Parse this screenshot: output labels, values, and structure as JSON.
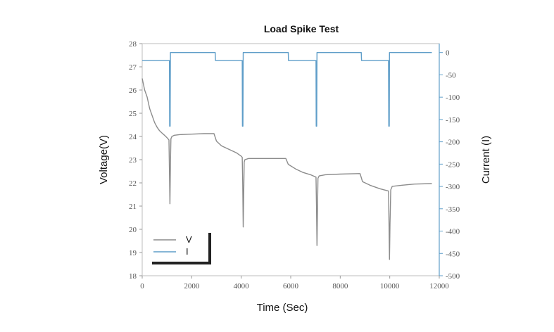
{
  "chart_data": {
    "type": "line",
    "title": "Load Spike Test",
    "xlabel": "Time (Sec)",
    "ylabel_left": "Voltage(V)",
    "ylabel_right": "Current (I)",
    "xlim": [
      0,
      12000
    ],
    "ylim_left": [
      18,
      28
    ],
    "ylim_right": [
      -500,
      20
    ],
    "x_ticks": [
      0,
      2000,
      4000,
      6000,
      8000,
      10000,
      12000
    ],
    "y_ticks_left": [
      18,
      19,
      20,
      21,
      22,
      23,
      24,
      25,
      26,
      27,
      28
    ],
    "y_ticks_right": [
      0,
      -50,
      -100,
      -150,
      -200,
      -250,
      -300,
      -350,
      -400,
      -450,
      -500
    ],
    "grid": false,
    "legend_position": "bottom-left",
    "series": [
      {
        "name": "V",
        "axis": "left",
        "color": "#8c8c8c",
        "points": [
          [
            0,
            26.5
          ],
          [
            100,
            26.0
          ],
          [
            200,
            25.7
          ],
          [
            300,
            25.2
          ],
          [
            400,
            24.9
          ],
          [
            500,
            24.6
          ],
          [
            600,
            24.4
          ],
          [
            700,
            24.25
          ],
          [
            800,
            24.15
          ],
          [
            900,
            24.05
          ],
          [
            1000,
            23.95
          ],
          [
            1080,
            23.85
          ],
          [
            1100,
            22.5
          ],
          [
            1120,
            21.1
          ],
          [
            1140,
            22.8
          ],
          [
            1160,
            23.9
          ],
          [
            1200,
            24.0
          ],
          [
            1300,
            24.05
          ],
          [
            1500,
            24.08
          ],
          [
            2000,
            24.1
          ],
          [
            2500,
            24.12
          ],
          [
            2900,
            24.12
          ],
          [
            3000,
            23.8
          ],
          [
            3200,
            23.6
          ],
          [
            3500,
            23.45
          ],
          [
            3800,
            23.3
          ],
          [
            4000,
            23.15
          ],
          [
            4040,
            23.1
          ],
          [
            4060,
            22.0
          ],
          [
            4080,
            20.1
          ],
          [
            4100,
            21.5
          ],
          [
            4120,
            22.9
          ],
          [
            4150,
            23.0
          ],
          [
            4300,
            23.05
          ],
          [
            4800,
            23.05
          ],
          [
            5400,
            23.05
          ],
          [
            5800,
            23.05
          ],
          [
            5900,
            22.8
          ],
          [
            6200,
            22.6
          ],
          [
            6500,
            22.45
          ],
          [
            6800,
            22.35
          ],
          [
            7020,
            22.25
          ],
          [
            7040,
            21.0
          ],
          [
            7060,
            19.3
          ],
          [
            7080,
            20.8
          ],
          [
            7100,
            22.2
          ],
          [
            7150,
            22.3
          ],
          [
            7400,
            22.35
          ],
          [
            8000,
            22.38
          ],
          [
            8800,
            22.4
          ],
          [
            8900,
            22.05
          ],
          [
            9200,
            21.9
          ],
          [
            9600,
            21.75
          ],
          [
            9950,
            21.65
          ],
          [
            9970,
            20.3
          ],
          [
            9990,
            18.7
          ],
          [
            10010,
            20.2
          ],
          [
            10040,
            21.7
          ],
          [
            10100,
            21.85
          ],
          [
            10500,
            21.9
          ],
          [
            11000,
            21.95
          ],
          [
            11700,
            21.97
          ]
        ]
      },
      {
        "name": "I",
        "axis": "right",
        "color": "#5f9ec9",
        "points": [
          [
            0,
            -18
          ],
          [
            1100,
            -18
          ],
          [
            1110,
            -165
          ],
          [
            1130,
            -165
          ],
          [
            1140,
            0
          ],
          [
            2950,
            0
          ],
          [
            2960,
            -18
          ],
          [
            4040,
            -18
          ],
          [
            4050,
            -165
          ],
          [
            4070,
            -165
          ],
          [
            4080,
            0
          ],
          [
            5900,
            0
          ],
          [
            5910,
            -18
          ],
          [
            7020,
            -18
          ],
          [
            7030,
            -165
          ],
          [
            7050,
            -165
          ],
          [
            7060,
            0
          ],
          [
            8850,
            0
          ],
          [
            8860,
            -18
          ],
          [
            9950,
            -18
          ],
          [
            9960,
            -165
          ],
          [
            9980,
            -165
          ],
          [
            9990,
            0
          ],
          [
            11700,
            0
          ]
        ]
      }
    ]
  }
}
